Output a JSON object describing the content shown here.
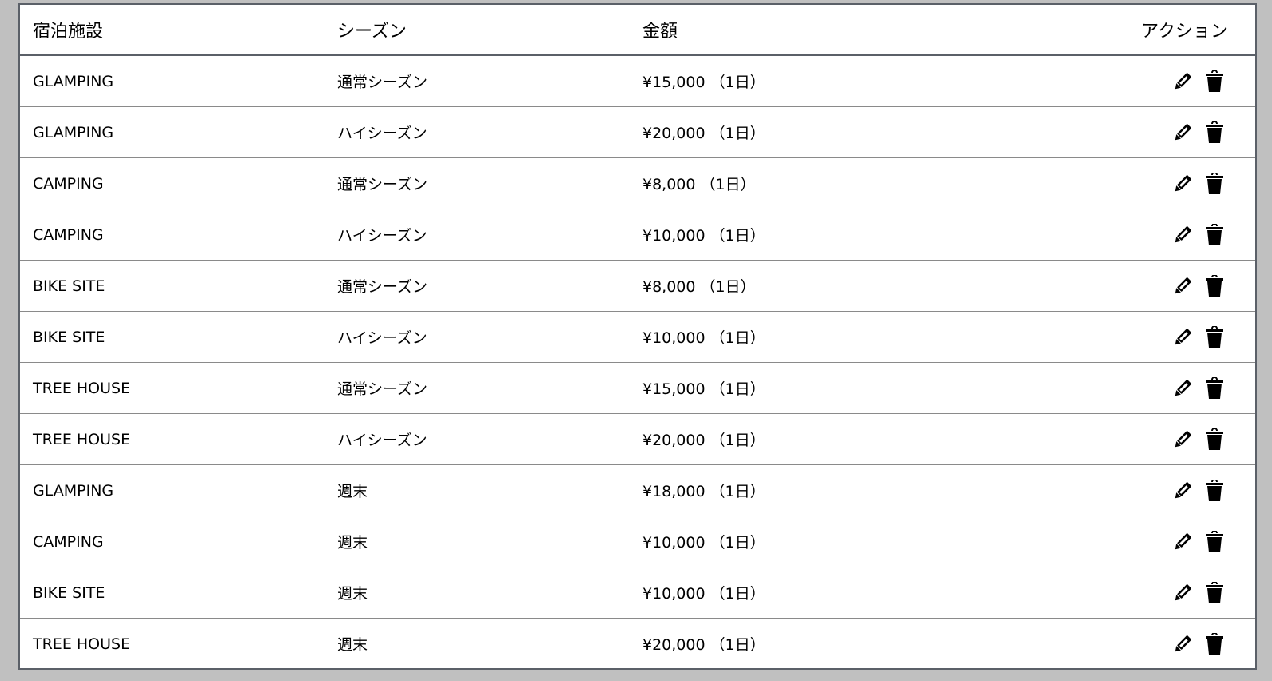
{
  "table": {
    "headers": {
      "facility": "宿泊施設",
      "season": "シーズン",
      "price": "金額",
      "actions": "アクション"
    },
    "rows": [
      {
        "facility": "GLAMPING",
        "season": "通常シーズン",
        "price": "¥15,000 （1日）"
      },
      {
        "facility": "GLAMPING",
        "season": "ハイシーズン",
        "price": "¥20,000 （1日）"
      },
      {
        "facility": "CAMPING",
        "season": "通常シーズン",
        "price": "¥8,000 （1日）"
      },
      {
        "facility": "CAMPING",
        "season": "ハイシーズン",
        "price": "¥10,000 （1日）"
      },
      {
        "facility": "BIKE SITE",
        "season": "通常シーズン",
        "price": "¥8,000 （1日）"
      },
      {
        "facility": "BIKE SITE",
        "season": "ハイシーズン",
        "price": "¥10,000 （1日）"
      },
      {
        "facility": "TREE HOUSE",
        "season": "通常シーズン",
        "price": "¥15,000 （1日）"
      },
      {
        "facility": "TREE HOUSE",
        "season": "ハイシーズン",
        "price": "¥20,000 （1日）"
      },
      {
        "facility": "GLAMPING",
        "season": "週末",
        "price": "¥18,000 （1日）"
      },
      {
        "facility": "CAMPING",
        "season": "週末",
        "price": "¥10,000 （1日）"
      },
      {
        "facility": "BIKE SITE",
        "season": "週末",
        "price": "¥10,000 （1日）"
      },
      {
        "facility": "TREE HOUSE",
        "season": "週末",
        "price": "¥20,000 （1日）"
      }
    ],
    "row_action_icons": [
      "pencil-icon",
      "trash-icon"
    ]
  }
}
